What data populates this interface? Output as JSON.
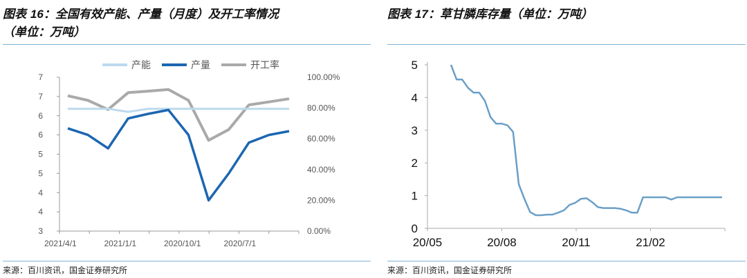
{
  "figure16": {
    "title_prefix": "图表",
    "title_number": "16",
    "title_text": "：全国有效产能、产量（月度）及开工率情况",
    "title_line2": "（单位：万吨）",
    "source": "来源：百川资讯，国金证券研究所"
  },
  "figure17": {
    "title_prefix": "图表",
    "title_number": "17",
    "title_text": "：草甘膦库存量（单位：万吨）",
    "source": "来源：百川资讯，国金证券研究所"
  },
  "colors": {
    "capacity": "#bcd9ee",
    "output": "#1b66b1",
    "utilization": "#a9a9a9",
    "inventory": "#6a9fc7",
    "rule": "#7fb3d5"
  },
  "chart_data": [
    {
      "type": "line",
      "title": "全国有效产能、产量（月度）及开工率情况",
      "legend_position": "top",
      "x_tick_labels": [
        "2021/4/1",
        "2021/1/1",
        "2020/10/1",
        "2020/7/1"
      ],
      "left_axis_tick_labels": [
        "3",
        "4",
        "4",
        "5",
        "5",
        "6",
        "6",
        "7",
        "7"
      ],
      "left_axis_range": [
        3,
        7
      ],
      "right_axis_tick_labels": [
        "0.00%",
        "20.00%",
        "40.00%",
        "60.00%",
        "80.00%",
        "100.00%"
      ],
      "right_axis_range": [
        0,
        100
      ],
      "points": 12,
      "series": [
        {
          "name": "产能",
          "axis": "left",
          "values": [
            6.18,
            6.18,
            6.18,
            6.1,
            6.18,
            6.18,
            6.18,
            6.18,
            6.18,
            6.18,
            6.18,
            6.18
          ]
        },
        {
          "name": "产量",
          "axis": "left",
          "values": [
            5.67,
            5.5,
            5.15,
            5.93,
            6.05,
            6.15,
            5.5,
            3.8,
            4.5,
            5.3,
            5.5,
            5.6
          ]
        },
        {
          "name": "开工率",
          "axis": "right",
          "values": [
            88,
            85,
            79,
            90,
            91,
            92,
            85,
            59,
            66,
            82,
            84,
            86
          ]
        }
      ],
      "grid": false
    },
    {
      "type": "line",
      "title": "草甘膦库存量",
      "x_tick_labels": [
        "20/05",
        "20/08",
        "20/11",
        "21/02"
      ],
      "y_tick_labels": [
        "0",
        "1",
        "2",
        "3",
        "4",
        "5"
      ],
      "ylim": [
        0,
        5
      ],
      "grid": false,
      "series": [
        {
          "values": [
            5.0,
            4.55,
            4.55,
            4.3,
            4.15,
            4.15,
            3.9,
            3.4,
            3.2,
            3.2,
            3.15,
            2.95,
            1.35,
            0.9,
            0.5,
            0.4,
            0.4,
            0.42,
            0.42,
            0.48,
            0.55,
            0.72,
            0.78,
            0.9,
            0.92,
            0.8,
            0.65,
            0.62,
            0.62,
            0.62,
            0.6,
            0.55,
            0.48,
            0.48,
            0.95,
            0.95,
            0.95,
            0.95,
            0.95,
            0.88,
            0.95,
            0.95,
            0.95,
            0.95,
            0.95,
            0.95,
            0.95,
            0.95,
            0.95
          ]
        }
      ]
    }
  ]
}
